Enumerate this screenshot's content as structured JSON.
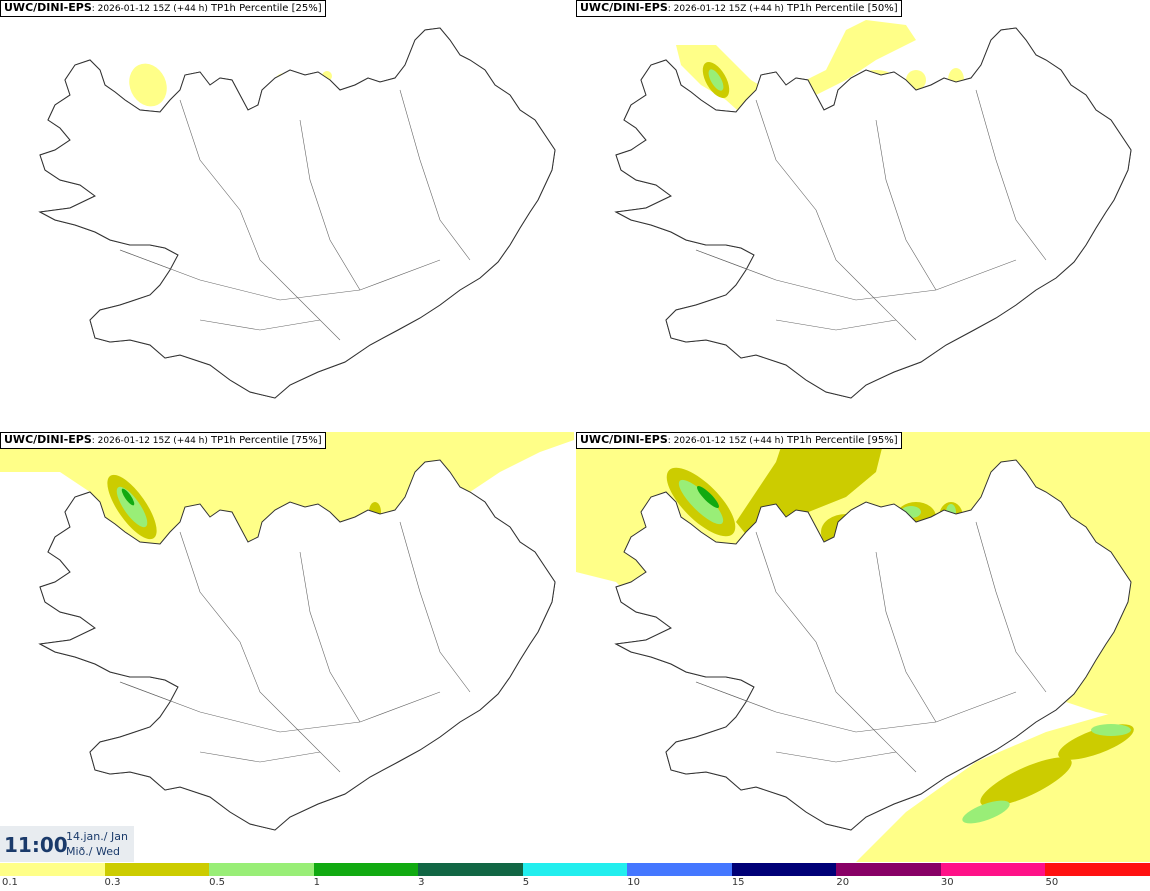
{
  "panels": [
    {
      "source": "UWC/DINI-EPS",
      "date": ": 2026-01-12 15Z (+44 h)",
      "product": " TP1h Percentile [25%]"
    },
    {
      "source": "UWC/DINI-EPS",
      "date": ": 2026-01-12 15Z (+44 h)",
      "product": " TP1h Percentile [50%]"
    },
    {
      "source": "UWC/DINI-EPS",
      "date": ": 2026-01-12 15Z (+44 h)",
      "product": " TP1h Percentile [75%]"
    },
    {
      "source": "UWC/DINI-EPS",
      "date": ": 2026-01-12 15Z (+44 h)",
      "product": " TP1h Percentile [95%]"
    }
  ],
  "valid_time": {
    "time": "11:00",
    "date_line1": "14.jan./ Jan",
    "date_line2": "Mið./ Wed"
  },
  "legend": {
    "colors": [
      "#ffff88",
      "#cccc00",
      "#99ee77",
      "#11aa11",
      "#116644",
      "#22eeee",
      "#4477ff",
      "#000077",
      "#880066",
      "#ff1188",
      "#ff1111"
    ],
    "labels": [
      "0.1",
      "0.3",
      "0.5",
      "1",
      "3",
      "5",
      "10",
      "15",
      "20",
      "30",
      "50"
    ]
  }
}
